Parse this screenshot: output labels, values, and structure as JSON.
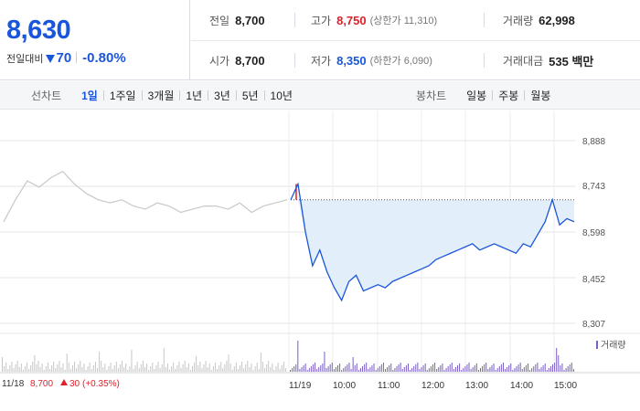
{
  "quote": {
    "price": "8,630",
    "change_label": "전일대비",
    "change_amount": "70",
    "change_rate": "-0.80%",
    "stats": {
      "prev_close": {
        "label": "전일",
        "value": "8,700"
      },
      "high": {
        "label": "고가",
        "value": "8,750",
        "sub": "(상한가 11,310)"
      },
      "volume": {
        "label": "거래량",
        "value": "62,998"
      },
      "open": {
        "label": "시가",
        "value": "8,700"
      },
      "low": {
        "label": "저가",
        "value": "8,350",
        "sub": "(하한가 6,090)"
      },
      "amount": {
        "label": "거래대금",
        "value": "535 백만"
      }
    }
  },
  "tabs": {
    "line_label": "선차트",
    "line_periods": [
      "1일",
      "1주일",
      "3개월",
      "1년",
      "3년",
      "5년",
      "10년"
    ],
    "active_period": "1일",
    "candle_label": "봉차트",
    "candle_periods": [
      "일봉",
      "주봉",
      "월봉"
    ]
  },
  "colors": {
    "up": "#e0202a",
    "down": "#1a56db",
    "prev_line": "#c8c8c8",
    "area_fill": "#e3eefb",
    "volume_today": "#7a5fc4",
    "volume_prev": "#c7c7c7"
  },
  "chart_data": {
    "type": "line",
    "y_ticks": [
      "8,888",
      "8,743",
      "8,598",
      "8,452",
      "8,307"
    ],
    "ylim": [
      8307,
      8888
    ],
    "reference_price": 8700,
    "x_ticks": [
      "11/19",
      "10:00",
      "11:00",
      "12:00",
      "13:00",
      "14:00",
      "15:00"
    ],
    "prev_day_label": "11/18",
    "prev_day_close": "8,700",
    "prev_day_change": "30",
    "prev_day_rate": "(+0.35%)",
    "volume_label": "거래량",
    "series": [
      {
        "values": [
          8630,
          8700,
          8760,
          8740,
          8770,
          8790,
          8750,
          8720,
          8700,
          8690,
          8700,
          8680,
          8670,
          8690,
          8680,
          8660,
          8670,
          8680,
          8680,
          8670,
          8690,
          8660,
          8680,
          8690,
          8700
        ]
      },
      {
        "values": [
          8700,
          8750,
          8600,
          8490,
          8540,
          8470,
          8420,
          8380,
          8440,
          8460,
          8410,
          8420,
          8430,
          8420,
          8440,
          8450,
          8460,
          8470,
          8480,
          8490,
          8510,
          8520,
          8530,
          8540,
          8550,
          8560,
          8540,
          8550,
          8560,
          8550,
          8540,
          8530,
          8560,
          8550,
          8590,
          8630,
          8700,
          8620,
          8640,
          8630
        ]
      }
    ]
  }
}
